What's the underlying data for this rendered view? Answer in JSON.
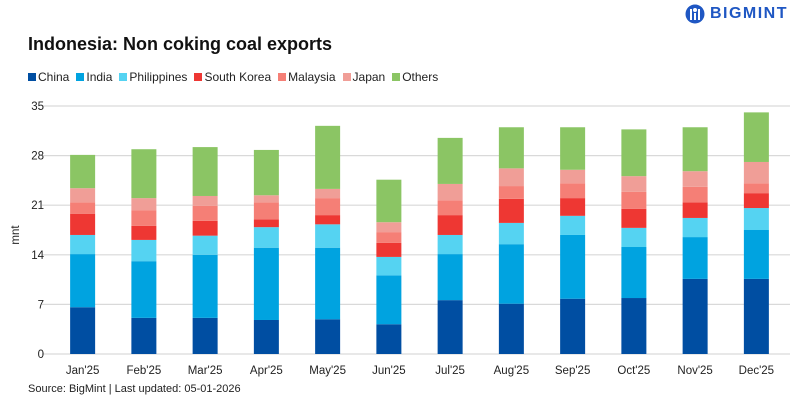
{
  "brand": {
    "name": "BIGMINT",
    "color": "#1f57c3"
  },
  "chart_data": {
    "type": "bar",
    "stacked": true,
    "title": "Indonesia: Non coking coal exports",
    "ylabel": "mnt",
    "xlabel": "",
    "ylim": [
      0,
      35
    ],
    "yticks": [
      0,
      7,
      14,
      21,
      28,
      35
    ],
    "grid": true,
    "legend_position": "top-left",
    "categories": [
      "Jan'25",
      "Feb'25",
      "Mar'25",
      "Apr'25",
      "May'25",
      "Jun'25",
      "Jul'25",
      "Aug'25",
      "Sep'25",
      "Oct'25",
      "Nov'25",
      "Dec'25"
    ],
    "series": [
      {
        "name": "China",
        "color": "#004ea2",
        "values": [
          6.6,
          5.1,
          5.1,
          4.8,
          4.9,
          4.2,
          7.6,
          7.1,
          7.8,
          7.9,
          10.6,
          10.6
        ]
      },
      {
        "name": "India",
        "color": "#00a3e0",
        "values": [
          7.5,
          8.0,
          8.9,
          10.2,
          10.1,
          6.9,
          6.5,
          8.4,
          9.0,
          7.2,
          5.9,
          6.9
        ]
      },
      {
        "name": "Philippines",
        "color": "#55d3f2",
        "values": [
          2.7,
          3.0,
          2.7,
          2.9,
          3.3,
          2.6,
          2.7,
          3.0,
          2.7,
          2.7,
          2.7,
          3.1
        ]
      },
      {
        "name": "South Korea",
        "color": "#ee3733",
        "values": [
          3.0,
          2.0,
          2.1,
          1.1,
          1.3,
          2.0,
          2.8,
          3.4,
          2.5,
          2.7,
          2.2,
          2.1
        ]
      },
      {
        "name": "Malaysia",
        "color": "#f57f76",
        "values": [
          1.6,
          2.2,
          2.1,
          2.4,
          2.4,
          1.5,
          2.1,
          1.8,
          2.1,
          2.4,
          2.2,
          1.4
        ]
      },
      {
        "name": "Japan",
        "color": "#f09e97",
        "values": [
          2.0,
          1.7,
          1.4,
          1.0,
          1.3,
          1.4,
          2.3,
          2.5,
          1.9,
          2.2,
          2.2,
          3.0
        ]
      },
      {
        "name": "Others",
        "color": "#8bc564",
        "values": [
          4.7,
          6.9,
          6.9,
          6.4,
          8.9,
          6.0,
          6.5,
          5.8,
          6.0,
          6.6,
          6.2,
          7.0
        ]
      }
    ]
  },
  "source": "Source: BigMint | Last updated: 05-01-2026"
}
